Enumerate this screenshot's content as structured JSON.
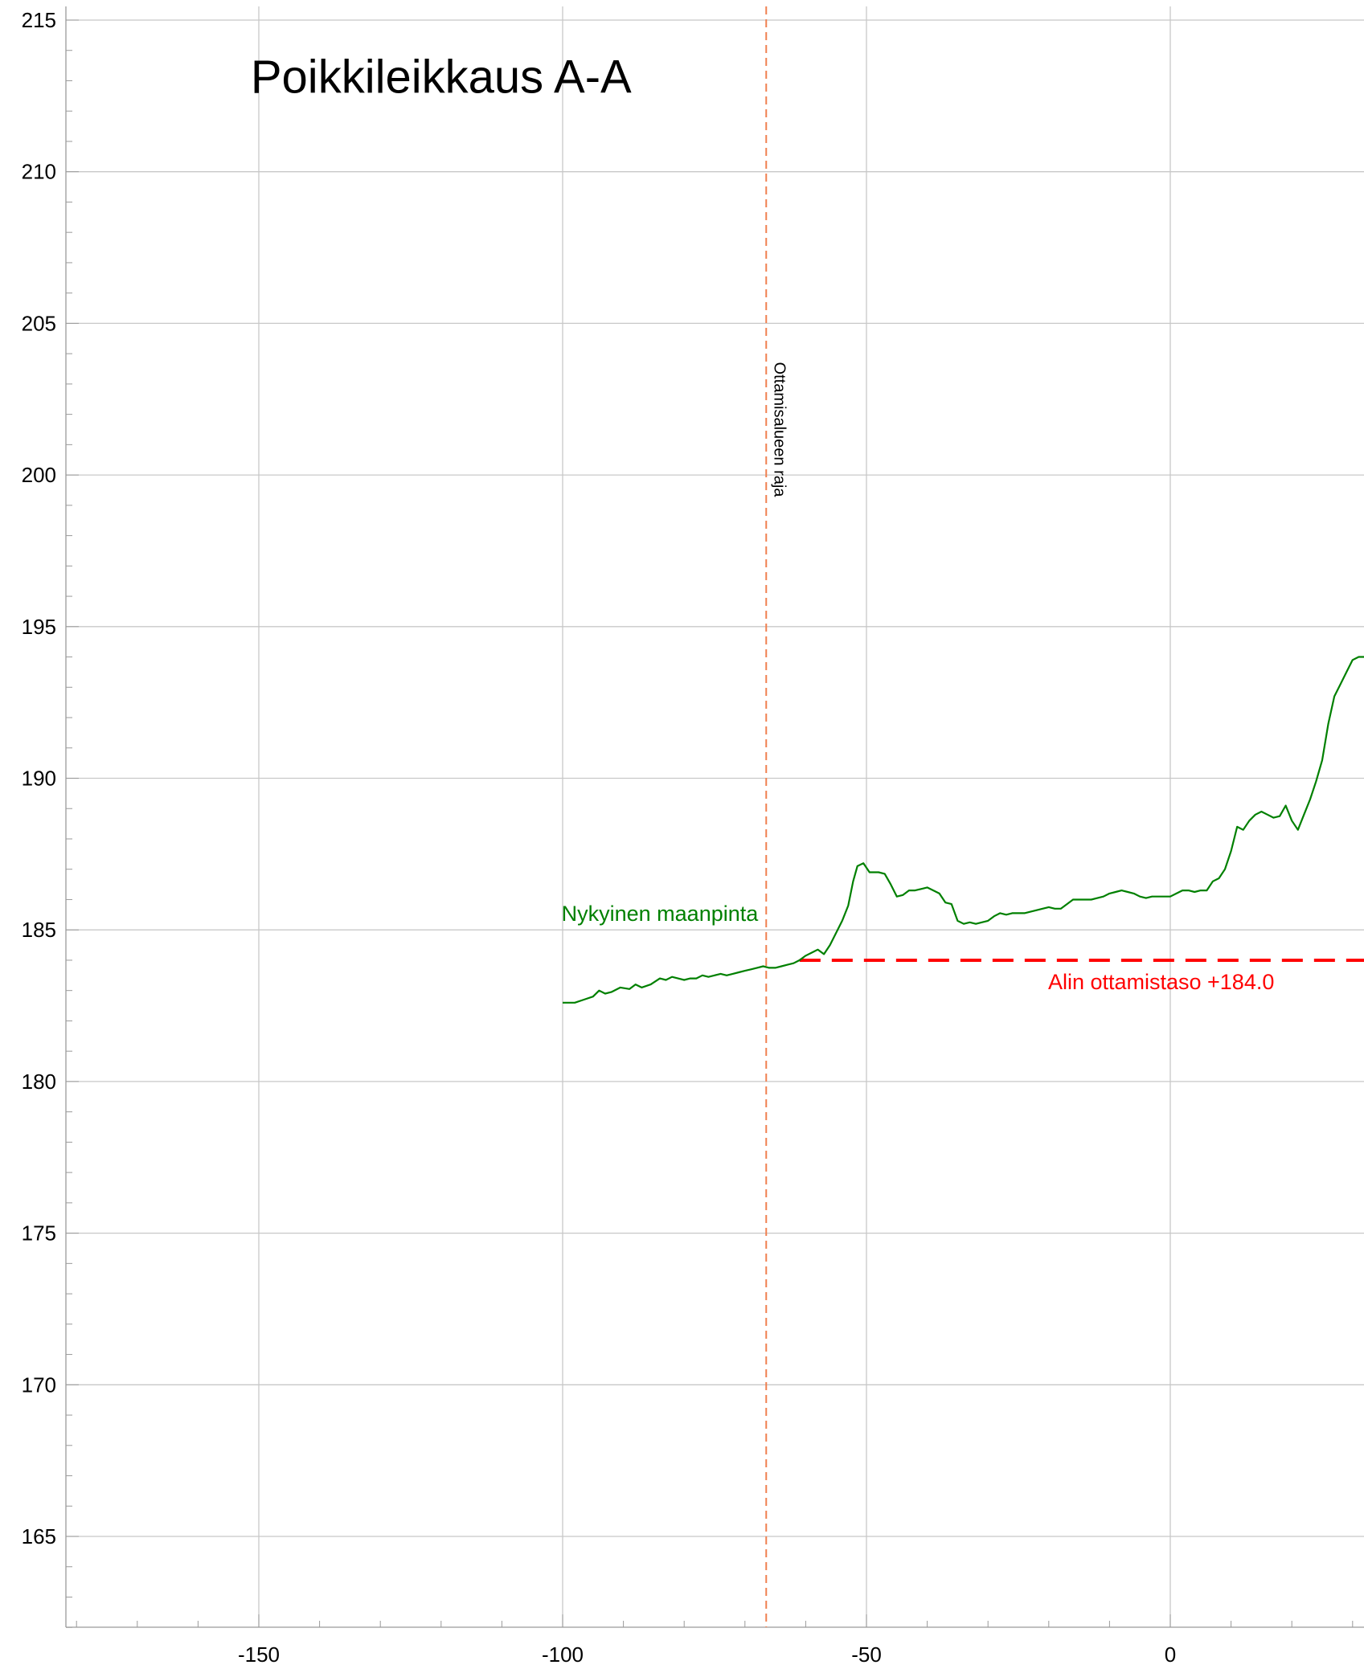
{
  "chart_data": {
    "type": "line",
    "title": "Poikkileikkaus A-A",
    "xlabel": "",
    "ylabel": "",
    "xlim": [
      -180,
      32
    ],
    "ylim": [
      162,
      215
    ],
    "xticks": [
      -150,
      -100,
      -50,
      0
    ],
    "yticks": [
      165,
      170,
      175,
      180,
      185,
      190,
      195,
      200,
      205,
      210,
      215
    ],
    "grid": true,
    "series": [
      {
        "name": "Nykyinen maanpinta",
        "color": "#008000",
        "points": [
          [
            -100,
            182.6
          ],
          [
            -98,
            182.6
          ],
          [
            -96.5,
            182.7
          ],
          [
            -95,
            182.8
          ],
          [
            -94,
            183.0
          ],
          [
            -93,
            182.9
          ],
          [
            -92,
            182.95
          ],
          [
            -90.5,
            183.1
          ],
          [
            -89,
            183.05
          ],
          [
            -88,
            183.2
          ],
          [
            -87,
            183.1
          ],
          [
            -85.5,
            183.2
          ],
          [
            -84,
            183.4
          ],
          [
            -83,
            183.35
          ],
          [
            -82,
            183.45
          ],
          [
            -81,
            183.4
          ],
          [
            -80,
            183.35
          ],
          [
            -79,
            183.4
          ],
          [
            -78,
            183.4
          ],
          [
            -77,
            183.5
          ],
          [
            -76,
            183.45
          ],
          [
            -75,
            183.5
          ],
          [
            -74,
            183.55
          ],
          [
            -73,
            183.5
          ],
          [
            -72,
            183.55
          ],
          [
            -71,
            183.6
          ],
          [
            -70,
            183.65
          ],
          [
            -69,
            183.7
          ],
          [
            -68,
            183.75
          ],
          [
            -67,
            183.8
          ],
          [
            -66,
            183.75
          ],
          [
            -65,
            183.75
          ],
          [
            -64,
            183.8
          ],
          [
            -63,
            183.85
          ],
          [
            -62,
            183.9
          ],
          [
            -61,
            184.0
          ],
          [
            -60,
            184.15
          ],
          [
            -59,
            184.25
          ],
          [
            -58,
            184.35
          ],
          [
            -57,
            184.2
          ],
          [
            -56,
            184.5
          ],
          [
            -55,
            184.9
          ],
          [
            -54,
            185.3
          ],
          [
            -53,
            185.8
          ],
          [
            -52.2,
            186.6
          ],
          [
            -51.5,
            187.1
          ],
          [
            -50.5,
            187.2
          ],
          [
            -49.5,
            186.9
          ],
          [
            -48,
            186.9
          ],
          [
            -47,
            186.85
          ],
          [
            -46,
            186.5
          ],
          [
            -45,
            186.1
          ],
          [
            -44,
            186.15
          ],
          [
            -43,
            186.3
          ],
          [
            -42,
            186.3
          ],
          [
            -41,
            186.35
          ],
          [
            -40,
            186.4
          ],
          [
            -39,
            186.3
          ],
          [
            -38,
            186.2
          ],
          [
            -37,
            185.9
          ],
          [
            -36,
            185.85
          ],
          [
            -35,
            185.3
          ],
          [
            -34,
            185.2
          ],
          [
            -33,
            185.25
          ],
          [
            -32,
            185.2
          ],
          [
            -31,
            185.25
          ],
          [
            -30,
            185.3
          ],
          [
            -29,
            185.45
          ],
          [
            -28,
            185.55
          ],
          [
            -27,
            185.5
          ],
          [
            -26,
            185.55
          ],
          [
            -25,
            185.55
          ],
          [
            -24,
            185.55
          ],
          [
            -23,
            185.6
          ],
          [
            -22,
            185.65
          ],
          [
            -21,
            185.7
          ],
          [
            -20,
            185.75
          ],
          [
            -19,
            185.7
          ],
          [
            -18,
            185.7
          ],
          [
            -17,
            185.85
          ],
          [
            -16,
            186.0
          ],
          [
            -15,
            186.0
          ],
          [
            -14,
            186.0
          ],
          [
            -13,
            186.0
          ],
          [
            -12,
            186.05
          ],
          [
            -11,
            186.1
          ],
          [
            -10,
            186.2
          ],
          [
            -9,
            186.25
          ],
          [
            -8,
            186.3
          ],
          [
            -7,
            186.25
          ],
          [
            -6,
            186.2
          ],
          [
            -5,
            186.1
          ],
          [
            -4,
            186.05
          ],
          [
            -3,
            186.1
          ],
          [
            -2,
            186.1
          ],
          [
            -1,
            186.1
          ],
          [
            0,
            186.1
          ],
          [
            1,
            186.2
          ],
          [
            2,
            186.3
          ],
          [
            3,
            186.3
          ],
          [
            4,
            186.25
          ],
          [
            5,
            186.3
          ],
          [
            6,
            186.3
          ],
          [
            7,
            186.6
          ],
          [
            8,
            186.7
          ],
          [
            9,
            187.0
          ],
          [
            10,
            187.6
          ],
          [
            11,
            188.4
          ],
          [
            12,
            188.3
          ],
          [
            13,
            188.6
          ],
          [
            14,
            188.8
          ],
          [
            15,
            188.9
          ],
          [
            16,
            188.8
          ],
          [
            17,
            188.7
          ],
          [
            18,
            188.75
          ],
          [
            19,
            189.1
          ],
          [
            20,
            188.6
          ],
          [
            21,
            188.3
          ],
          [
            22,
            188.8
          ],
          [
            23,
            189.3
          ],
          [
            24,
            189.9
          ],
          [
            25,
            190.6
          ],
          [
            26,
            191.8
          ],
          [
            27,
            192.7
          ],
          [
            28,
            193.1
          ],
          [
            29,
            193.5
          ],
          [
            30,
            193.9
          ],
          [
            31,
            194.0
          ],
          [
            32,
            194.0
          ]
        ],
        "label": "Nykyinen maanpinta",
        "label_at": [
          -84,
          185.3
        ]
      }
    ],
    "reference_lines": [
      {
        "kind": "horizontal",
        "name": "Alin ottamistaso +184.0",
        "y": 184.0,
        "x_from": -61,
        "x_to": 32,
        "color": "#ff0000",
        "style": "dashed",
        "label": "Alin ottamistaso +184.0",
        "label_at": [
          -1.5,
          183.05
        ]
      },
      {
        "kind": "vertical",
        "name": "Ottamisalueen raja",
        "x": -66.5,
        "color": "#f08050",
        "style": "dashed",
        "label": "Ottamisalueen raja",
        "label_at": [
          -66.5,
          201.5
        ]
      }
    ],
    "title_at": [
      -120,
      212.6
    ]
  }
}
